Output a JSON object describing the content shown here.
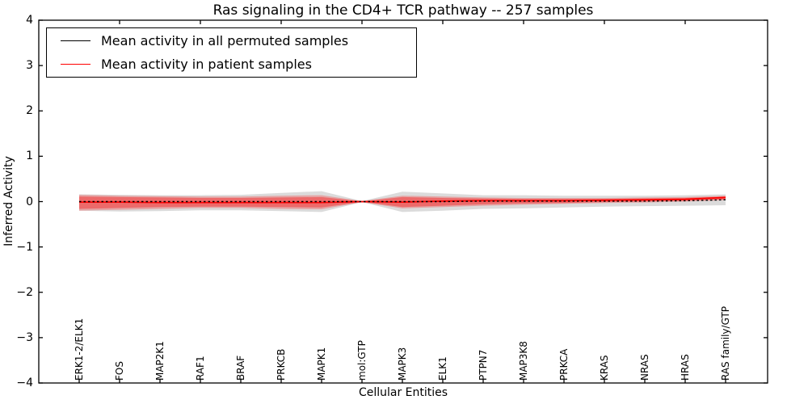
{
  "chart_data": {
    "type": "line",
    "title": "Ras signaling in the CD4+ TCR pathway -- 257 samples",
    "xlabel": "Cellular Entities",
    "ylabel": "Inferred Activity",
    "ylim": [
      -4,
      4
    ],
    "y_tick_labels": [
      "4",
      "3",
      "2",
      "1",
      "0",
      "−1",
      "−2",
      "−3",
      "−4"
    ],
    "grid": false,
    "legend_position": "upper left",
    "categories": [
      "ERK1-2/ELK1",
      "FOS",
      "MAP2K1",
      "RAF1",
      "BRAF",
      "PRKCB",
      "MAPK1",
      "mol:GTP",
      "MAPK3",
      "ELK1",
      "PTPN7",
      "MAP3K8",
      "PRKCA",
      "KRAS",
      "NRAS",
      "HRAS",
      "RAS family/GTP"
    ],
    "series": [
      {
        "name": "Mean activity in all permuted samples",
        "color": "#000000",
        "line_style": "dotted",
        "values": [
          0,
          0,
          0,
          0,
          0,
          0,
          0,
          0,
          0,
          0,
          0.01,
          0.01,
          0.01,
          0.01,
          0.01,
          0.02,
          0.04
        ],
        "band_color": "rgba(0,0,0,0.14)",
        "band_upper": [
          0.16,
          0.15,
          0.14,
          0.14,
          0.15,
          0.19,
          0.23,
          0.01,
          0.22,
          0.18,
          0.14,
          0.14,
          0.13,
          0.13,
          0.13,
          0.14,
          0.16
        ],
        "band_lower": [
          -0.2,
          -0.22,
          -0.21,
          -0.19,
          -0.19,
          -0.21,
          -0.23,
          -0.01,
          -0.23,
          -0.2,
          -0.16,
          -0.15,
          -0.13,
          -0.11,
          -0.1,
          -0.09,
          -0.08
        ]
      },
      {
        "name": "Mean activity in patient samples",
        "color": "#ff0000",
        "line_style": "solid",
        "values": [
          -0.01,
          -0.01,
          -0.02,
          -0.02,
          -0.02,
          -0.02,
          -0.02,
          0,
          -0.01,
          0.01,
          0.02,
          0.02,
          0.02,
          0.03,
          0.04,
          0.05,
          0.09
        ],
        "band_color": "rgba(255,0,0,0.25)",
        "band_upper": [
          0.15,
          0.13,
          0.12,
          0.11,
          0.11,
          0.13,
          0.14,
          0.01,
          0.13,
          0.11,
          0.09,
          0.08,
          0.08,
          0.08,
          0.09,
          0.1,
          0.13
        ],
        "band_lower": [
          -0.2,
          -0.18,
          -0.16,
          -0.14,
          -0.14,
          -0.16,
          -0.17,
          -0.01,
          -0.15,
          -0.12,
          -0.09,
          -0.07,
          -0.05,
          -0.03,
          -0.02,
          0.0,
          0.03
        ],
        "band_inner_color": "rgba(255,0,0,0.35)",
        "band_inner_upper": [
          0.11,
          0.1,
          0.09,
          0.08,
          0.08,
          0.09,
          0.1,
          0.005,
          0.1,
          0.08,
          0.07,
          0.06,
          0.06,
          0.06,
          0.07,
          0.08,
          0.11
        ],
        "band_inner_lower": [
          -0.16,
          -0.14,
          -0.12,
          -0.11,
          -0.11,
          -0.12,
          -0.13,
          -0.005,
          -0.12,
          -0.09,
          -0.06,
          -0.04,
          -0.03,
          -0.01,
          0.0,
          0.02,
          0.05
        ]
      }
    ]
  },
  "colors": {
    "background": "#ffffff",
    "axis": "#000000",
    "permuted_line": "#000000",
    "patient_line": "#ff0000"
  }
}
